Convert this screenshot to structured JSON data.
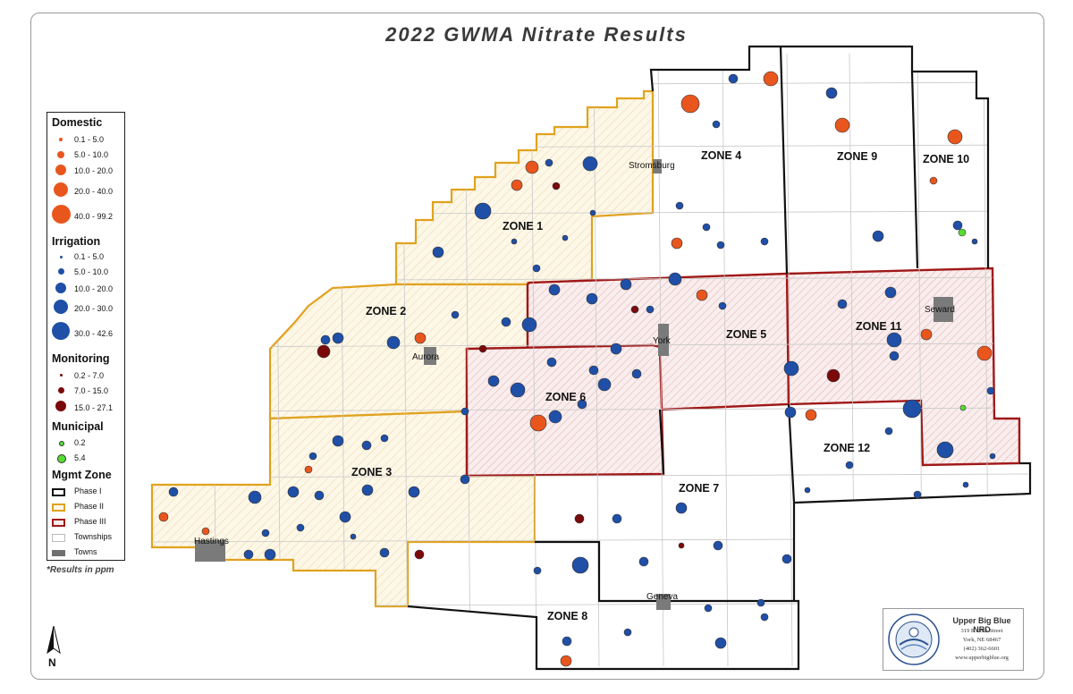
{
  "title": "2022 GWMA Nitrate Results",
  "zones": [
    "ZONE 1",
    "ZONE 2",
    "ZONE 3",
    "ZONE 4",
    "ZONE 5",
    "ZONE 6",
    "ZONE 7",
    "ZONE 8",
    "ZONE 9",
    "ZONE 10",
    "ZONE 11",
    "ZONE 12"
  ],
  "towns": [
    "Stromsburg",
    "Aurora",
    "York",
    "Seward",
    "Hastings",
    "Geneva"
  ],
  "legend": {
    "domestic": {
      "title": "Domestic",
      "items": [
        "0.1 - 5.0",
        "5.0 - 10.0",
        "10.0 - 20.0",
        "20.0 - 40.0",
        "40.0 - 99.2"
      ],
      "color": "#e8561e"
    },
    "irrigation": {
      "title": "Irrigation",
      "items": [
        "0.1 - 5.0",
        "5.0 - 10.0",
        "10.0 - 20.0",
        "20.0 - 30.0",
        "30.0 - 42.6"
      ],
      "color": "#1f4fa6"
    },
    "monitoring": {
      "title": "Monitoring",
      "items": [
        "0.2 - 7.0",
        "7.0 - 15.0",
        "15.0 - 27.1"
      ],
      "color": "#7a0a0a"
    },
    "municipal": {
      "title": "Municipal",
      "items": [
        "0.2",
        "5.4"
      ],
      "color": "#55dd33"
    },
    "mgmt": {
      "title": "Mgmt Zone",
      "items": [
        "Phase I",
        "Phase II",
        "Phase III",
        "Townships",
        "Towns"
      ],
      "colors": [
        "#111111",
        "#e0a21e",
        "#a01818",
        "#bbbbbb",
        "#707070"
      ]
    }
  },
  "note": "*Results in ppm",
  "north_label": "N",
  "logo": {
    "org": "Upper Big Blue NRD",
    "address": "319 E. 25th Street",
    "city": "York, NE 68467",
    "phone": "(402) 362-6601",
    "web": "www.upperbigblue.org"
  }
}
